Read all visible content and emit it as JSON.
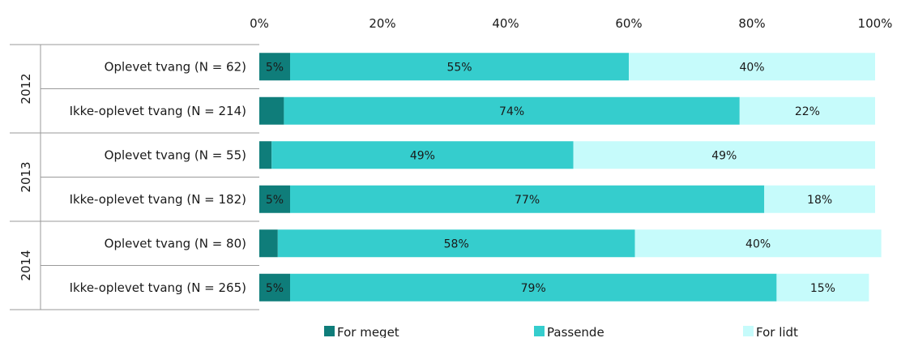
{
  "chart_data": {
    "type": "bar",
    "orientation": "horizontal",
    "stacked": true,
    "xlim": [
      0,
      100
    ],
    "x_ticks": [
      "0%",
      "20%",
      "40%",
      "60%",
      "80%",
      "100%"
    ],
    "groups": [
      {
        "label": "2012",
        "categories": [
          "Oplevet tvang (N = 62)",
          "Ikke-oplevet tvang (N = 214)"
        ]
      },
      {
        "label": "2013",
        "categories": [
          "Oplevet tvang (N = 55)",
          "Ikke-oplevet tvang (N = 182)"
        ]
      },
      {
        "label": "2014",
        "categories": [
          "Oplevet tvang (N = 80)",
          "Ikke-oplevet tvang (N = 265)"
        ]
      }
    ],
    "series": [
      {
        "name": "For meget",
        "color": "#0f7d7a",
        "values": [
          5,
          4,
          2,
          5,
          3,
          5
        ],
        "labels": [
          "5%",
          "",
          "",
          "5%",
          "",
          "5%"
        ]
      },
      {
        "name": "Passende",
        "color": "#35cdcd",
        "values": [
          55,
          74,
          49,
          77,
          58,
          79
        ],
        "labels": [
          "55%",
          "74%",
          "49%",
          "77%",
          "58%",
          "79%"
        ]
      },
      {
        "name": "For lidt",
        "color": "#c6fbfb",
        "values": [
          40,
          22,
          49,
          18,
          40,
          15
        ],
        "labels": [
          "40%",
          "22%",
          "49%",
          "18%",
          "40%",
          "15%"
        ]
      }
    ],
    "legend_position": "bottom"
  }
}
